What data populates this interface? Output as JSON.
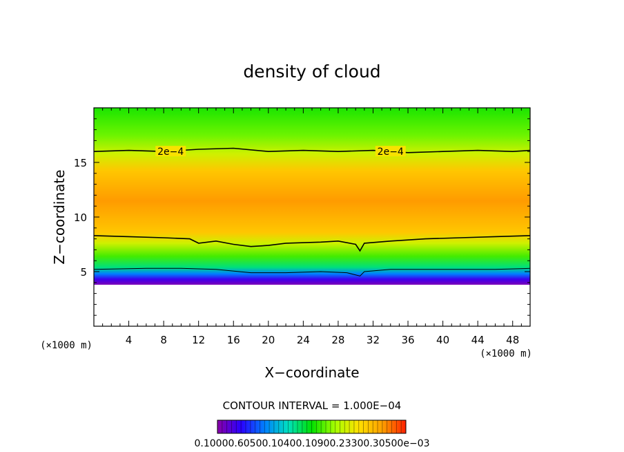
{
  "chart_data": {
    "type": "heatmap",
    "title": "density of cloud",
    "xlabel": "X−coordinate",
    "ylabel": "Z−coordinate",
    "x_unit_left": "(×1000 m)",
    "x_unit_right": "(×1000 m)",
    "xlim": [
      0,
      50
    ],
    "ylim": [
      0,
      20
    ],
    "x_ticks": [
      4,
      8,
      12,
      16,
      20,
      24,
      28,
      32,
      36,
      40,
      44,
      48
    ],
    "y_ticks": [
      5,
      10,
      15
    ],
    "contour_interval_text": "CONTOUR INTERVAL = 1.000E−04",
    "contour_labels": [
      {
        "text": "2e−4",
        "x": 8.8,
        "y": 16.0
      },
      {
        "text": "2e−4",
        "x": 34.0,
        "y": 16.0
      }
    ],
    "colorbar_labels": "0.10000.60500.10400.10900.23300.30500e−03",
    "colormap": [
      "#8a00a8",
      "#2a00ff",
      "#0080ff",
      "#00e0c0",
      "#00e000",
      "#a8ff00",
      "#ffe000",
      "#ffa000",
      "#ff2000"
    ],
    "field_profile": [
      {
        "z": 3.8,
        "level": 0.02
      },
      {
        "z": 4.3,
        "level": 0.1
      },
      {
        "z": 4.8,
        "level": 0.25
      },
      {
        "z": 5.4,
        "level": 0.42
      },
      {
        "z": 6.4,
        "level": 0.55
      },
      {
        "z": 7.6,
        "level": 0.68
      },
      {
        "z": 8.6,
        "level": 0.8
      },
      {
        "z": 11.5,
        "level": 0.88
      },
      {
        "z": 14.2,
        "level": 0.8
      },
      {
        "z": 15.8,
        "level": 0.68
      },
      {
        "z": 17.5,
        "level": 0.58
      },
      {
        "z": 20.0,
        "level": 0.52
      }
    ],
    "contours": [
      {
        "name": "",
        "points": [
          [
            0,
            16.0
          ],
          [
            4,
            16.1
          ],
          [
            8,
            16.0
          ],
          [
            12,
            16.2
          ],
          [
            16,
            16.3
          ],
          [
            20,
            16.0
          ],
          [
            24,
            16.1
          ],
          [
            28,
            16.0
          ],
          [
            32,
            16.1
          ],
          [
            36,
            15.9
          ],
          [
            40,
            16.0
          ],
          [
            44,
            16.1
          ],
          [
            48,
            16.0
          ],
          [
            50,
            16.1
          ]
        ]
      },
      {
        "name": "",
        "points": [
          [
            0,
            8.3
          ],
          [
            4,
            8.2
          ],
          [
            8,
            8.1
          ],
          [
            11,
            8.0
          ],
          [
            12,
            7.6
          ],
          [
            14,
            7.8
          ],
          [
            16,
            7.5
          ],
          [
            18,
            7.3
          ],
          [
            20,
            7.4
          ],
          [
            22,
            7.6
          ],
          [
            26,
            7.7
          ],
          [
            28,
            7.8
          ],
          [
            30,
            7.5
          ],
          [
            30.5,
            6.9
          ],
          [
            31,
            7.6
          ],
          [
            34,
            7.8
          ],
          [
            38,
            8.0
          ],
          [
            42,
            8.1
          ],
          [
            46,
            8.2
          ],
          [
            50,
            8.3
          ]
        ]
      },
      {
        "name": "",
        "points": [
          [
            0,
            5.2
          ],
          [
            6,
            5.3
          ],
          [
            10,
            5.3
          ],
          [
            14,
            5.2
          ],
          [
            18,
            4.9
          ],
          [
            22,
            4.9
          ],
          [
            26,
            5.0
          ],
          [
            29,
            4.9
          ],
          [
            30.5,
            4.6
          ],
          [
            31,
            5.0
          ],
          [
            34,
            5.2
          ],
          [
            40,
            5.2
          ],
          [
            46,
            5.2
          ],
          [
            50,
            5.3
          ]
        ]
      }
    ]
  }
}
